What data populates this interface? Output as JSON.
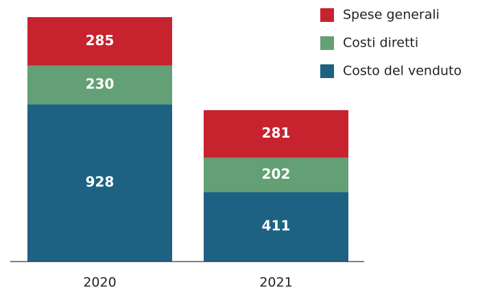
{
  "chart_data": {
    "type": "stacked_bar",
    "categories": [
      "2020",
      "2021"
    ],
    "series": [
      {
        "name": "Spese generali",
        "color": "#c7232f",
        "values": [
          285,
          281
        ]
      },
      {
        "name": "Costi diretti",
        "color": "#63a075",
        "values": [
          230,
          202
        ]
      },
      {
        "name": "Costo del venduto",
        "color": "#1d6282",
        "values": [
          928,
          411
        ]
      }
    ],
    "legend": "top-right"
  }
}
